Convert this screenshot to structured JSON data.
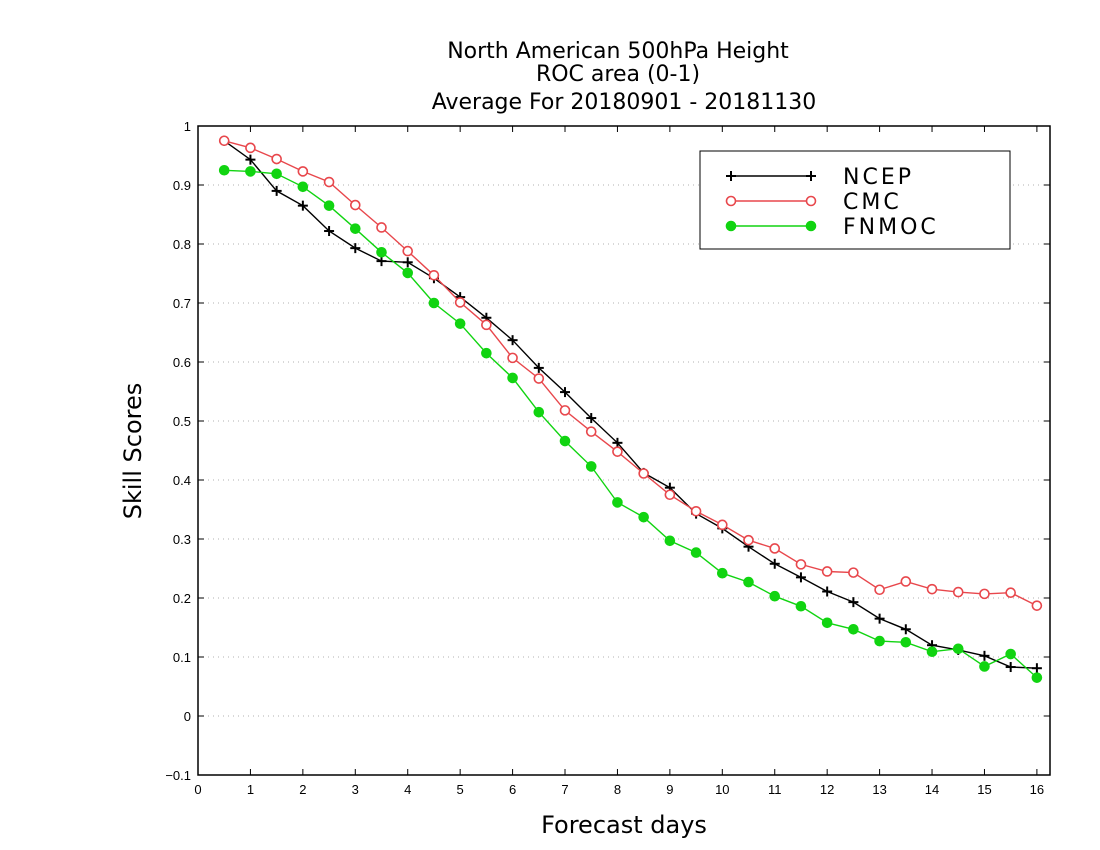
{
  "chart_data": {
    "type": "line",
    "title_lines": [
      "North American 500hPa Height",
      "ROC area (0-1)",
      "Average For 20180901 - 20181130"
    ],
    "xlabel": "Forecast days",
    "ylabel": "Skill Scores",
    "xlim": [
      0,
      16.25
    ],
    "ylim": [
      -0.1,
      1
    ],
    "x_ticks": [
      0,
      1,
      2,
      3,
      4,
      5,
      6,
      7,
      8,
      9,
      10,
      11,
      12,
      13,
      14,
      15,
      16
    ],
    "y_ticks": [
      -0.1,
      0,
      0.1,
      0.2,
      0.3,
      0.4,
      0.5,
      0.6,
      0.7,
      0.8,
      0.9,
      1
    ],
    "y_tick_labels": [
      "−0.1",
      "0",
      "0.1",
      "0.2",
      "0.3",
      "0.4",
      "0.5",
      "0.6",
      "0.7",
      "0.8",
      "0.9",
      "1"
    ],
    "grid": true,
    "legend_position": "top-right",
    "x": [
      0.5,
      1,
      1.5,
      2,
      2.5,
      3,
      3.5,
      4,
      4.5,
      5,
      5.5,
      6,
      6.5,
      7,
      7.5,
      8,
      8.5,
      9,
      9.5,
      10,
      10.5,
      11,
      11.5,
      12,
      12.5,
      13,
      13.5,
      14,
      14.5,
      15,
      15.5,
      16
    ],
    "series": [
      {
        "name": "NCEP",
        "color": "#000000",
        "marker": "plus",
        "values": [
          0.975,
          0.943,
          0.89,
          0.865,
          0.822,
          0.793,
          0.771,
          0.769,
          0.742,
          0.71,
          0.675,
          0.637,
          0.59,
          0.549,
          0.505,
          0.463,
          0.412,
          0.387,
          0.343,
          0.318,
          0.287,
          0.258,
          0.235,
          0.211,
          0.193,
          0.165,
          0.147,
          0.12,
          0.112,
          0.102,
          0.083,
          0.081
        ]
      },
      {
        "name": "CMC",
        "color": "#e8474c",
        "marker": "open-circle",
        "values": [
          0.975,
          0.963,
          0.944,
          0.923,
          0.905,
          0.866,
          0.828,
          0.788,
          0.747,
          0.701,
          0.663,
          0.607,
          0.572,
          0.518,
          0.482,
          0.448,
          0.411,
          0.375,
          0.347,
          0.324,
          0.298,
          0.284,
          0.257,
          0.245,
          0.243,
          0.214,
          0.228,
          0.215,
          0.21,
          0.207,
          0.209,
          0.187
        ]
      },
      {
        "name": "FNMOC",
        "color": "#11d411",
        "marker": "filled-circle",
        "values": [
          0.925,
          0.923,
          0.919,
          0.897,
          0.865,
          0.826,
          0.786,
          0.751,
          0.7,
          0.665,
          0.615,
          0.573,
          0.515,
          0.466,
          0.423,
          0.362,
          0.337,
          0.297,
          0.277,
          0.242,
          0.227,
          0.203,
          0.186,
          0.158,
          0.147,
          0.127,
          0.125,
          0.109,
          0.114,
          0.084,
          0.105,
          0.065
        ]
      }
    ]
  }
}
